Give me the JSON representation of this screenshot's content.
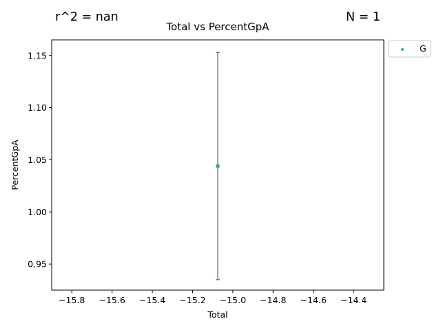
{
  "header": {
    "r2_label": "r^2 = nan",
    "n_label": "N = 1"
  },
  "chart_data": {
    "type": "scatter",
    "title": "Total vs PercentGpA",
    "xlabel": "Total",
    "ylabel": "PercentGpA",
    "xlim": [
      -15.9,
      -14.25
    ],
    "ylim": [
      0.925,
      1.165
    ],
    "xticks": [
      -15.8,
      -15.6,
      -15.4,
      -15.2,
      -15.0,
      -14.8,
      -14.6,
      -14.4
    ],
    "xtick_labels": [
      "−15.8",
      "−15.6",
      "−15.4",
      "−15.2",
      "−15.0",
      "−14.8",
      "−14.6",
      "−14.4"
    ],
    "yticks": [
      0.95,
      1.0,
      1.05,
      1.1,
      1.15
    ],
    "ytick_labels": [
      "0.95",
      "1.00",
      "1.05",
      "1.10",
      "1.15"
    ],
    "grid": false,
    "legend_position": "outside-top-right",
    "series": [
      {
        "name": "G",
        "color": "#3cb371",
        "points": [
          {
            "x": -15.075,
            "y": 1.044,
            "yerr_low": 0.935,
            "yerr_high": 1.153
          }
        ]
      }
    ],
    "errorbar_color": "#666666"
  }
}
